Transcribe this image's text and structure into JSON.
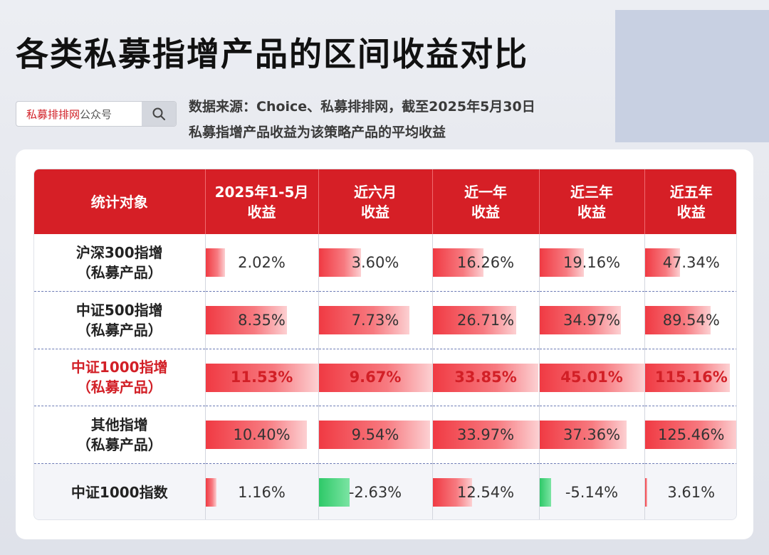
{
  "header": {
    "title": "各类私募指增产品的区间收益对比",
    "search_brand": "私募排排网",
    "search_suffix": "公众号",
    "source_line1": "数据来源：Choice、私募排排网，截至2025年5月30日",
    "source_line2": "私募指增产品收益为该策略产品的平均收益"
  },
  "colors": {
    "header_bg": "#d61f26",
    "positive_bar": "#f03a43",
    "negative_bar": "#2ec968",
    "highlight_text": "#d21f26"
  },
  "chart_data": {
    "type": "table",
    "columns": [
      {
        "line1": "统计对象",
        "line2": ""
      },
      {
        "line1": "2025年1-5月",
        "line2": "收益"
      },
      {
        "line1": "近六月",
        "line2": "收益"
      },
      {
        "line1": "近一年",
        "line2": "收益"
      },
      {
        "line1": "近三年",
        "line2": "收益"
      },
      {
        "line1": "近五年",
        "line2": "收益"
      }
    ],
    "rows": [
      {
        "line1": "沪深300指增",
        "line2": "（私募产品）",
        "highlight": false,
        "values": [
          2.02,
          3.6,
          16.26,
          19.16,
          47.34
        ],
        "labels": [
          "2.02%",
          "3.60%",
          "16.26%",
          "19.16%",
          "47.34%"
        ]
      },
      {
        "line1": "中证500指增",
        "line2": "（私募产品）",
        "highlight": false,
        "values": [
          8.35,
          7.73,
          26.71,
          34.97,
          89.54
        ],
        "labels": [
          "8.35%",
          "7.73%",
          "26.71%",
          "34.97%",
          "89.54%"
        ]
      },
      {
        "line1": "中证1000指增",
        "line2": "（私募产品）",
        "highlight": true,
        "values": [
          11.53,
          9.67,
          33.85,
          45.01,
          115.16
        ],
        "labels": [
          "11.53%",
          "9.67%",
          "33.85%",
          "45.01%",
          "115.16%"
        ]
      },
      {
        "line1": "其他指增",
        "line2": "（私募产品）",
        "highlight": false,
        "values": [
          10.4,
          9.54,
          33.97,
          37.36,
          125.46
        ],
        "labels": [
          "10.40%",
          "9.54%",
          "33.97%",
          "37.36%",
          "125.46%"
        ]
      },
      {
        "line1": "中证1000指数",
        "line2": "",
        "highlight": false,
        "values": [
          1.16,
          -2.63,
          12.54,
          -5.14,
          3.61
        ],
        "labels": [
          "1.16%",
          "-2.63%",
          "12.54%",
          "-5.14%",
          "3.61%"
        ]
      }
    ]
  }
}
